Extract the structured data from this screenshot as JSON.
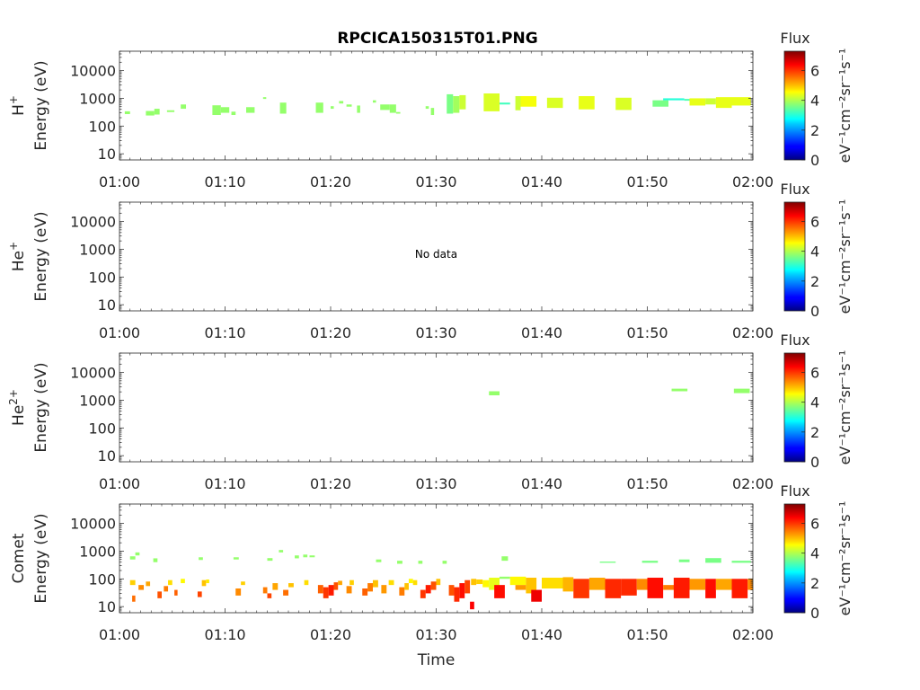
{
  "chart_data": {
    "type": "heatmap",
    "title": "RPCICA150315T01.PNG",
    "xlabel": "Time",
    "x_ticks": [
      "01:00",
      "01:10",
      "01:20",
      "01:30",
      "01:40",
      "01:50",
      "02:00"
    ],
    "x_range_minutes": [
      0,
      60
    ],
    "y_scale": "log",
    "y_range_eV": [
      6,
      50000
    ],
    "y_ticks": [
      "10",
      "100",
      "1000",
      "10000"
    ],
    "y_tick_values": [
      10,
      100,
      1000,
      10000
    ],
    "colorbar": {
      "label": "Flux",
      "unit_label": "eV⁻¹cm⁻²sr⁻¹s⁻¹",
      "range": [
        0,
        7.3
      ],
      "ticks": [
        "0",
        "2",
        "4",
        "6"
      ],
      "tick_values": [
        0,
        2,
        4,
        6
      ],
      "colormap": "jet"
    },
    "panels": [
      {
        "species_base": "H",
        "species_sup": "+",
        "ylabel": "Energy (eV)",
        "note": "",
        "cells": [
          {
            "t0": 0.5,
            "t1": 1.0,
            "e0": 270,
            "e1": 340,
            "v": 3.8
          },
          {
            "t0": 2.5,
            "t1": 3.3,
            "e0": 240,
            "e1": 350,
            "v": 3.8
          },
          {
            "t0": 3.3,
            "t1": 3.8,
            "e0": 260,
            "e1": 420,
            "v": 3.8
          },
          {
            "t0": 4.5,
            "t1": 5.2,
            "e0": 320,
            "e1": 370,
            "v": 3.8
          },
          {
            "t0": 5.8,
            "t1": 6.3,
            "e0": 420,
            "e1": 600,
            "v": 3.8
          },
          {
            "t0": 8.8,
            "t1": 9.6,
            "e0": 250,
            "e1": 560,
            "v": 3.8
          },
          {
            "t0": 9.6,
            "t1": 10.4,
            "e0": 300,
            "e1": 480,
            "v": 3.8
          },
          {
            "t0": 10.6,
            "t1": 11.0,
            "e0": 250,
            "e1": 330,
            "v": 3.8
          },
          {
            "t0": 12.0,
            "t1": 12.8,
            "e0": 300,
            "e1": 480,
            "v": 3.8
          },
          {
            "t0": 13.6,
            "t1": 13.9,
            "e0": 950,
            "e1": 1100,
            "v": 3.8
          },
          {
            "t0": 15.2,
            "t1": 15.8,
            "e0": 280,
            "e1": 700,
            "v": 3.8
          },
          {
            "t0": 18.6,
            "t1": 19.3,
            "e0": 300,
            "e1": 700,
            "v": 3.8
          },
          {
            "t0": 20.0,
            "t1": 20.3,
            "e0": 420,
            "e1": 520,
            "v": 3.8
          },
          {
            "t0": 20.8,
            "t1": 21.2,
            "e0": 650,
            "e1": 800,
            "v": 3.8
          },
          {
            "t0": 21.5,
            "t1": 22.0,
            "e0": 500,
            "e1": 600,
            "v": 3.8
          },
          {
            "t0": 22.5,
            "t1": 22.8,
            "e0": 300,
            "e1": 550,
            "v": 3.8
          },
          {
            "t0": 24.0,
            "t1": 24.3,
            "e0": 700,
            "e1": 850,
            "v": 3.8
          },
          {
            "t0": 24.7,
            "t1": 25.6,
            "e0": 380,
            "e1": 600,
            "v": 3.8
          },
          {
            "t0": 25.6,
            "t1": 26.2,
            "e0": 300,
            "e1": 600,
            "v": 3.8
          },
          {
            "t0": 26.2,
            "t1": 26.6,
            "e0": 280,
            "e1": 320,
            "v": 3.8
          },
          {
            "t0": 29.0,
            "t1": 29.3,
            "e0": 420,
            "e1": 520,
            "v": 3.8
          },
          {
            "t0": 29.5,
            "t1": 29.8,
            "e0": 250,
            "e1": 450,
            "v": 3.8
          },
          {
            "t0": 31.0,
            "t1": 31.6,
            "e0": 280,
            "e1": 1400,
            "v": 3.6
          },
          {
            "t0": 31.6,
            "t1": 32.2,
            "e0": 300,
            "e1": 1200,
            "v": 3.9
          },
          {
            "t0": 32.2,
            "t1": 32.8,
            "e0": 400,
            "e1": 1300,
            "v": 4.2
          },
          {
            "t0": 34.5,
            "t1": 36.0,
            "e0": 340,
            "e1": 1500,
            "v": 4.3
          },
          {
            "t0": 36.0,
            "t1": 37.0,
            "e0": 600,
            "e1": 700,
            "v": 3.2
          },
          {
            "t0": 37.5,
            "t1": 38.0,
            "e0": 370,
            "e1": 1200,
            "v": 4.2
          },
          {
            "t0": 38.0,
            "t1": 39.5,
            "e0": 500,
            "e1": 1200,
            "v": 4.5
          },
          {
            "t0": 40.5,
            "t1": 42.0,
            "e0": 450,
            "e1": 1050,
            "v": 4.3
          },
          {
            "t0": 43.5,
            "t1": 45.0,
            "e0": 400,
            "e1": 1200,
            "v": 4.4
          },
          {
            "t0": 47.0,
            "t1": 48.5,
            "e0": 380,
            "e1": 1050,
            "v": 4.3
          },
          {
            "t0": 50.5,
            "t1": 52.0,
            "e0": 500,
            "e1": 850,
            "v": 3.6
          },
          {
            "t0": 51.5,
            "t1": 53.5,
            "e0": 850,
            "e1": 1000,
            "v": 3.0
          },
          {
            "t0": 53.5,
            "t1": 54.0,
            "e0": 820,
            "e1": 950,
            "v": 3.3
          },
          {
            "t0": 54.0,
            "t1": 55.5,
            "e0": 550,
            "e1": 1000,
            "v": 4.4
          },
          {
            "t0": 55.5,
            "t1": 56.5,
            "e0": 600,
            "e1": 1000,
            "v": 4.2
          },
          {
            "t0": 56.5,
            "t1": 58.0,
            "e0": 450,
            "e1": 1100,
            "v": 4.4
          },
          {
            "t0": 58.0,
            "t1": 59.8,
            "e0": 550,
            "e1": 1100,
            "v": 4.4
          }
        ]
      },
      {
        "species_base": "He",
        "species_sup": "+",
        "ylabel": "Energy (eV)",
        "note": "No data",
        "cells": []
      },
      {
        "species_base": "He",
        "species_sup": "2+",
        "ylabel": "Energy (eV)",
        "note": "",
        "cells": [
          {
            "t0": 35.0,
            "t1": 36.0,
            "e0": 1500,
            "e1": 2100,
            "v": 3.8
          },
          {
            "t0": 52.3,
            "t1": 53.8,
            "e0": 2100,
            "e1": 2600,
            "v": 3.8
          },
          {
            "t0": 58.2,
            "t1": 59.7,
            "e0": 1800,
            "e1": 2600,
            "v": 3.8
          }
        ]
      },
      {
        "species_base": "Comet",
        "species_sup": "",
        "ylabel": "Energy (eV)",
        "note": "",
        "cells": [
          {
            "t0": 1.0,
            "t1": 1.5,
            "e0": 500,
            "e1": 650,
            "v": 3.8
          },
          {
            "t0": 1.5,
            "t1": 1.9,
            "e0": 700,
            "e1": 900,
            "v": 3.8
          },
          {
            "t0": 1.0,
            "t1": 1.5,
            "e0": 60,
            "e1": 90,
            "v": 4.9
          },
          {
            "t0": 1.2,
            "t1": 1.5,
            "e0": 15,
            "e1": 25,
            "v": 5.6
          },
          {
            "t0": 1.8,
            "t1": 2.3,
            "e0": 40,
            "e1": 60,
            "v": 5.4
          },
          {
            "t0": 2.5,
            "t1": 2.9,
            "e0": 55,
            "e1": 80,
            "v": 5.2
          },
          {
            "t0": 3.2,
            "t1": 3.6,
            "e0": 400,
            "e1": 550,
            "v": 3.8
          },
          {
            "t0": 3.6,
            "t1": 4.0,
            "e0": 20,
            "e1": 35,
            "v": 5.8
          },
          {
            "t0": 4.2,
            "t1": 4.6,
            "e0": 35,
            "e1": 55,
            "v": 5.5
          },
          {
            "t0": 4.6,
            "t1": 5.0,
            "e0": 60,
            "e1": 90,
            "v": 4.8
          },
          {
            "t0": 5.2,
            "t1": 5.5,
            "e0": 25,
            "e1": 40,
            "v": 5.7
          },
          {
            "t0": 5.8,
            "t1": 6.2,
            "e0": 70,
            "e1": 100,
            "v": 4.6
          },
          {
            "t0": 7.5,
            "t1": 7.9,
            "e0": 480,
            "e1": 600,
            "v": 3.8
          },
          {
            "t0": 7.4,
            "t1": 7.8,
            "e0": 22,
            "e1": 35,
            "v": 5.9
          },
          {
            "t0": 7.8,
            "t1": 8.2,
            "e0": 55,
            "e1": 90,
            "v": 5.0
          },
          {
            "t0": 8.2,
            "t1": 8.5,
            "e0": 70,
            "e1": 95,
            "v": 4.7
          },
          {
            "t0": 10.8,
            "t1": 11.3,
            "e0": 500,
            "e1": 600,
            "v": 3.8
          },
          {
            "t0": 11.0,
            "t1": 11.5,
            "e0": 25,
            "e1": 45,
            "v": 5.4
          },
          {
            "t0": 11.5,
            "t1": 11.9,
            "e0": 60,
            "e1": 80,
            "v": 4.9
          },
          {
            "t0": 13.6,
            "t1": 14.0,
            "e0": 30,
            "e1": 50,
            "v": 5.5
          },
          {
            "t0": 14.0,
            "t1": 14.4,
            "e0": 20,
            "e1": 30,
            "v": 5.9
          },
          {
            "t0": 14.0,
            "t1": 14.5,
            "e0": 450,
            "e1": 560,
            "v": 3.8
          },
          {
            "t0": 14.5,
            "t1": 15.0,
            "e0": 40,
            "e1": 70,
            "v": 5.2
          },
          {
            "t0": 15.1,
            "t1": 15.5,
            "e0": 900,
            "e1": 1100,
            "v": 3.8
          },
          {
            "t0": 15.5,
            "t1": 16.0,
            "e0": 25,
            "e1": 40,
            "v": 5.6
          },
          {
            "t0": 16.0,
            "t1": 16.5,
            "e0": 50,
            "e1": 70,
            "v": 5.0
          },
          {
            "t0": 16.6,
            "t1": 17.0,
            "e0": 550,
            "e1": 700,
            "v": 3.8
          },
          {
            "t0": 17.4,
            "t1": 17.8,
            "e0": 600,
            "e1": 750,
            "v": 3.8
          },
          {
            "t0": 17.5,
            "t1": 17.9,
            "e0": 60,
            "e1": 90,
            "v": 4.8
          },
          {
            "t0": 18.0,
            "t1": 18.5,
            "e0": 600,
            "e1": 700,
            "v": 3.8
          },
          {
            "t0": 18.8,
            "t1": 19.3,
            "e0": 30,
            "e1": 60,
            "v": 5.7
          },
          {
            "t0": 19.3,
            "t1": 19.8,
            "e0": 20,
            "e1": 50,
            "v": 6.0
          },
          {
            "t0": 19.8,
            "t1": 20.3,
            "e0": 25,
            "e1": 60,
            "v": 6.2
          },
          {
            "t0": 20.3,
            "t1": 20.7,
            "e0": 40,
            "e1": 75,
            "v": 5.8
          },
          {
            "t0": 20.7,
            "t1": 21.1,
            "e0": 60,
            "e1": 85,
            "v": 5.2
          },
          {
            "t0": 21.5,
            "t1": 22.0,
            "e0": 30,
            "e1": 55,
            "v": 5.4
          },
          {
            "t0": 21.8,
            "t1": 22.2,
            "e0": 60,
            "e1": 90,
            "v": 4.9
          },
          {
            "t0": 23.0,
            "t1": 23.5,
            "e0": 25,
            "e1": 45,
            "v": 5.7
          },
          {
            "t0": 23.5,
            "t1": 24.0,
            "e0": 35,
            "e1": 70,
            "v": 5.5
          },
          {
            "t0": 24.0,
            "t1": 24.5,
            "e0": 50,
            "e1": 90,
            "v": 5.0
          },
          {
            "t0": 24.3,
            "t1": 24.8,
            "e0": 400,
            "e1": 500,
            "v": 3.8
          },
          {
            "t0": 24.8,
            "t1": 25.3,
            "e0": 30,
            "e1": 60,
            "v": 5.3
          },
          {
            "t0": 25.5,
            "t1": 26.0,
            "e0": 60,
            "e1": 90,
            "v": 4.8
          },
          {
            "t0": 26.3,
            "t1": 26.8,
            "e0": 350,
            "e1": 450,
            "v": 3.8
          },
          {
            "t0": 26.5,
            "t1": 27.0,
            "e0": 25,
            "e1": 50,
            "v": 5.5
          },
          {
            "t0": 27.0,
            "t1": 27.4,
            "e0": 40,
            "e1": 70,
            "v": 5.0
          },
          {
            "t0": 27.4,
            "t1": 27.8,
            "e0": 70,
            "e1": 100,
            "v": 4.6
          },
          {
            "t0": 27.8,
            "t1": 28.2,
            "e0": 60,
            "e1": 90,
            "v": 4.8
          },
          {
            "t0": 28.3,
            "t1": 28.7,
            "e0": 350,
            "e1": 450,
            "v": 3.8
          },
          {
            "t0": 28.5,
            "t1": 29.0,
            "e0": 20,
            "e1": 40,
            "v": 6.0
          },
          {
            "t0": 29.0,
            "t1": 29.5,
            "e0": 30,
            "e1": 60,
            "v": 6.2
          },
          {
            "t0": 29.5,
            "t1": 30.0,
            "e0": 40,
            "e1": 80,
            "v": 5.8
          },
          {
            "t0": 30.0,
            "t1": 30.4,
            "e0": 60,
            "e1": 100,
            "v": 5.0
          },
          {
            "t0": 30.6,
            "t1": 31.0,
            "e0": 350,
            "e1": 450,
            "v": 3.8
          },
          {
            "t0": 31.2,
            "t1": 31.7,
            "e0": 25,
            "e1": 60,
            "v": 5.8
          },
          {
            "t0": 31.7,
            "t1": 32.2,
            "e0": 15,
            "e1": 50,
            "v": 6.1
          },
          {
            "t0": 32.2,
            "t1": 32.7,
            "e0": 20,
            "e1": 70,
            "v": 6.3
          },
          {
            "t0": 32.7,
            "t1": 33.2,
            "e0": 30,
            "e1": 90,
            "v": 5.9
          },
          {
            "t0": 33.2,
            "t1": 33.6,
            "e0": 8,
            "e1": 15,
            "v": 6.4
          },
          {
            "t0": 33.3,
            "t1": 33.8,
            "e0": 60,
            "e1": 100,
            "v": 5.0
          },
          {
            "t0": 33.8,
            "t1": 34.4,
            "e0": 65,
            "e1": 95,
            "v": 4.9
          },
          {
            "t0": 34.4,
            "t1": 35.0,
            "e0": 50,
            "e1": 90,
            "v": 4.6
          },
          {
            "t0": 35.0,
            "t1": 36.0,
            "e0": 40,
            "e1": 110,
            "v": 4.4
          },
          {
            "t0": 35.5,
            "t1": 36.5,
            "e0": 20,
            "e1": 60,
            "v": 6.3
          },
          {
            "t0": 36.0,
            "t1": 37.0,
            "e0": 100,
            "e1": 120,
            "v": 3.8
          },
          {
            "t0": 36.2,
            "t1": 36.8,
            "e0": 450,
            "e1": 650,
            "v": 3.8
          },
          {
            "t0": 37.0,
            "t1": 38.5,
            "e0": 60,
            "e1": 120,
            "v": 4.6
          },
          {
            "t0": 37.5,
            "t1": 38.5,
            "e0": 40,
            "e1": 60,
            "v": 5.3
          },
          {
            "t0": 38.5,
            "t1": 39.5,
            "e0": 30,
            "e1": 110,
            "v": 5.0
          },
          {
            "t0": 39.0,
            "t1": 40.0,
            "e0": 15,
            "e1": 40,
            "v": 6.5
          },
          {
            "t0": 40.0,
            "t1": 42.0,
            "e0": 45,
            "e1": 110,
            "v": 4.8
          },
          {
            "t0": 42.0,
            "t1": 43.0,
            "e0": 35,
            "e1": 115,
            "v": 5.1
          },
          {
            "t0": 43.0,
            "t1": 44.5,
            "e0": 20,
            "e1": 100,
            "v": 6.0
          },
          {
            "t0": 44.5,
            "t1": 46.0,
            "e0": 40,
            "e1": 110,
            "v": 5.2
          },
          {
            "t0": 45.5,
            "t1": 47.0,
            "e0": 380,
            "e1": 420,
            "v": 3.6
          },
          {
            "t0": 46.0,
            "t1": 47.5,
            "e0": 20,
            "e1": 100,
            "v": 6.1
          },
          {
            "t0": 47.5,
            "t1": 49.0,
            "e0": 25,
            "e1": 100,
            "v": 6.1
          },
          {
            "t0": 49.0,
            "t1": 50.0,
            "e0": 40,
            "e1": 100,
            "v": 5.4
          },
          {
            "t0": 49.5,
            "t1": 51.0,
            "e0": 380,
            "e1": 450,
            "v": 3.6
          },
          {
            "t0": 50.0,
            "t1": 51.5,
            "e0": 20,
            "e1": 110,
            "v": 6.3
          },
          {
            "t0": 51.5,
            "t1": 53.0,
            "e0": 40,
            "e1": 60,
            "v": 5.5
          },
          {
            "t0": 52.5,
            "t1": 54.0,
            "e0": 20,
            "e1": 110,
            "v": 6.2
          },
          {
            "t0": 53.0,
            "t1": 54.0,
            "e0": 400,
            "e1": 500,
            "v": 3.6
          },
          {
            "t0": 54.0,
            "t1": 55.5,
            "e0": 40,
            "e1": 100,
            "v": 5.3
          },
          {
            "t0": 55.5,
            "t1": 56.5,
            "e0": 20,
            "e1": 100,
            "v": 6.3
          },
          {
            "t0": 55.5,
            "t1": 57.0,
            "e0": 380,
            "e1": 560,
            "v": 3.6
          },
          {
            "t0": 56.5,
            "t1": 58.0,
            "e0": 40,
            "e1": 100,
            "v": 5.2
          },
          {
            "t0": 58.0,
            "t1": 59.5,
            "e0": 20,
            "e1": 100,
            "v": 6.2
          },
          {
            "t0": 58.0,
            "t1": 59.8,
            "e0": 380,
            "e1": 450,
            "v": 3.6
          },
          {
            "t0": 59.5,
            "t1": 60.0,
            "e0": 40,
            "e1": 100,
            "v": 5.4
          }
        ]
      }
    ]
  }
}
